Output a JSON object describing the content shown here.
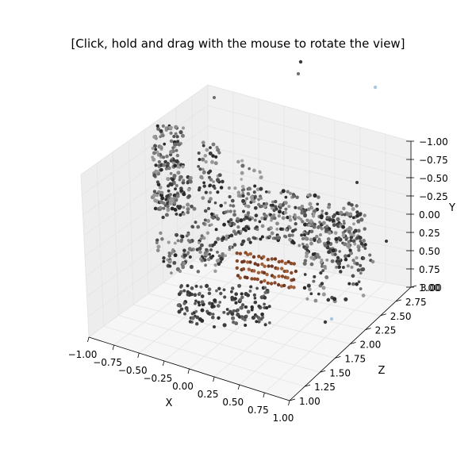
{
  "title": "[Click, hold and drag with the mouse to rotate the view]",
  "chart_data": {
    "type": "scatter",
    "projection": "3d",
    "xlabel": "X",
    "ylabel": "Y",
    "zlabel": "Z",
    "xlim": [
      -1.0,
      1.0
    ],
    "ylim": [
      1.0,
      -1.0
    ],
    "zlim": [
      1.0,
      3.0
    ],
    "x_ticks": [
      "−1.00",
      "−0.75",
      "−0.50",
      "−0.25",
      "0.00",
      "0.25",
      "0.50",
      "0.75",
      "1.00"
    ],
    "y_ticks": [
      "−1.00",
      "−0.75",
      "−0.50",
      "−0.25",
      "0.00",
      "0.25",
      "0.50",
      "0.75",
      "1.00"
    ],
    "z_ticks": [
      "1.00",
      "1.25",
      "1.50",
      "1.75",
      "2.00",
      "2.25",
      "2.50",
      "2.75",
      "3.00"
    ],
    "grid": true,
    "colors": {
      "pane_left": "#ededed",
      "pane_right": "#f0f0f0",
      "pane_floor": "#f6f6f6",
      "points_dark": "#3a3a3a",
      "points_mid": "#6b6b6b",
      "points_light": "#9a9a9a",
      "points_orange": "#8a4a2a",
      "points_blue": "#a8c8e0"
    }
  }
}
